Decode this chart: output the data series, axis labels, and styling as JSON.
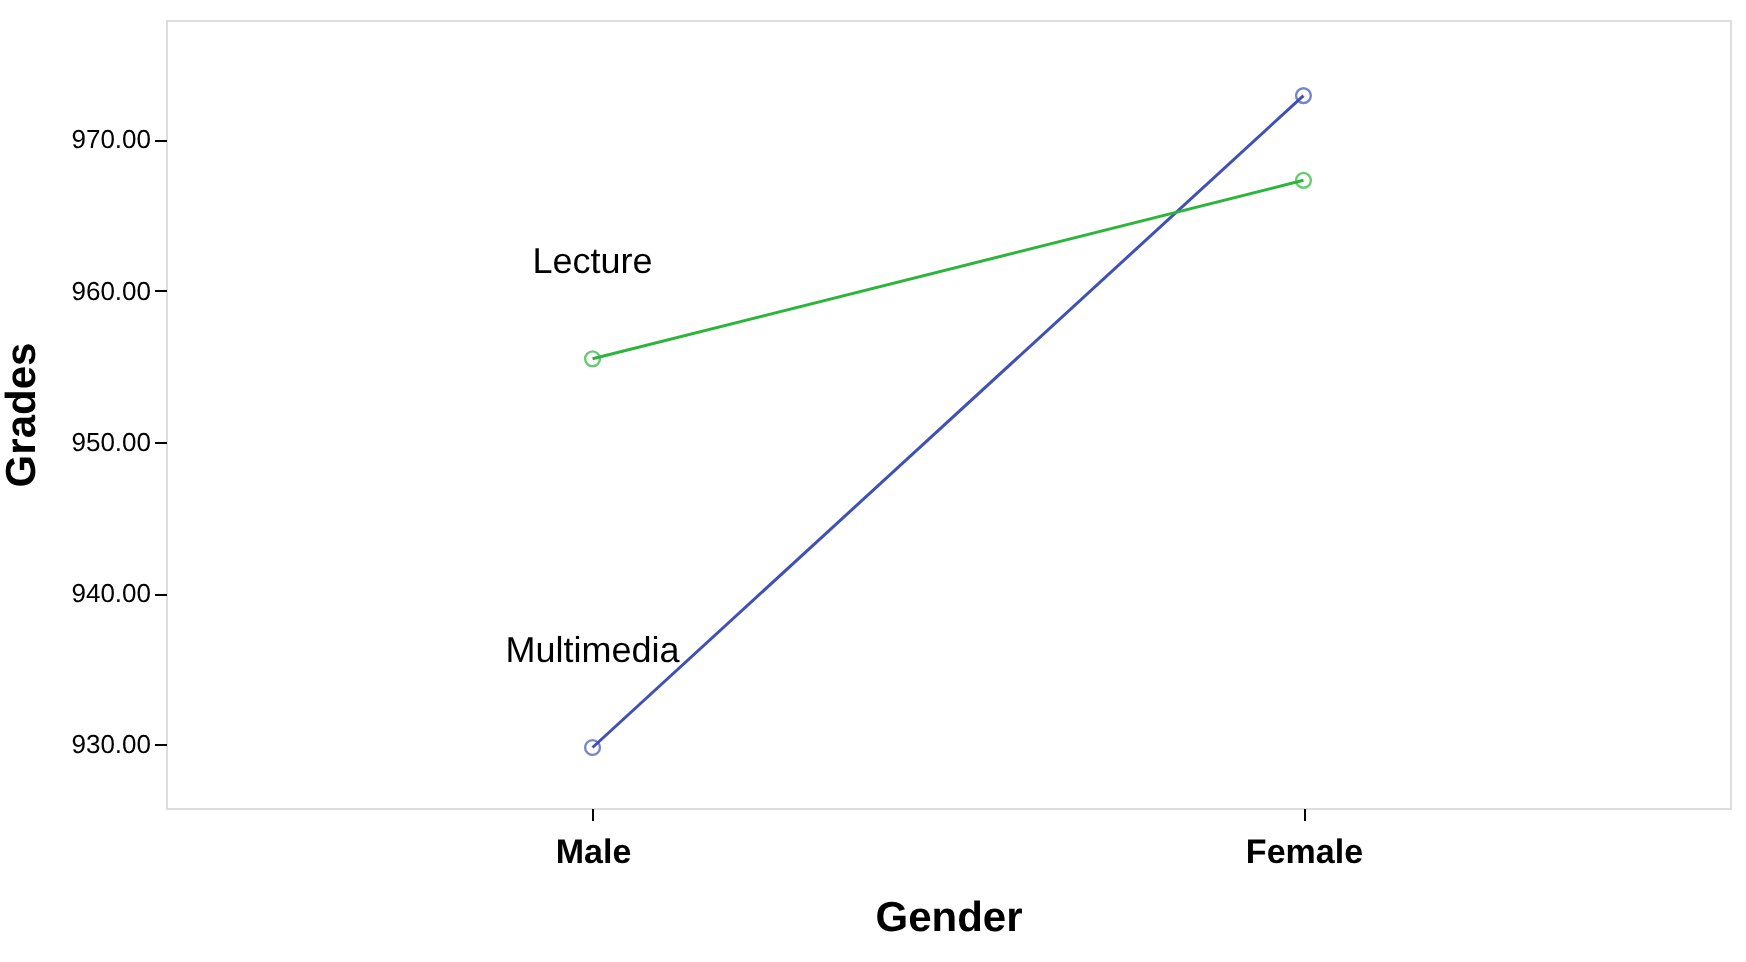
{
  "chart_data": {
    "type": "line",
    "xlabel": "Gender",
    "ylabel": "Grades",
    "categories": [
      "Male",
      "Female"
    ],
    "series": [
      {
        "name": "Multimedia",
        "color": "#3f51b5",
        "values": [
          929.8,
          972.9
        ]
      },
      {
        "name": "Lecture",
        "color": "#2cb53a",
        "values": [
          955.5,
          967.3
        ]
      }
    ],
    "ylim": [
      925.8,
      977.9
    ],
    "yticks": [
      {
        "value": 930,
        "label": "930.00"
      },
      {
        "value": 940,
        "label": "940.00"
      },
      {
        "value": 950,
        "label": "950.00"
      },
      {
        "value": 960,
        "label": "960.00"
      },
      {
        "value": 970,
        "label": "970.00"
      }
    ],
    "marker": "circle",
    "line_style": "solid",
    "grid": false,
    "legend": false
  }
}
